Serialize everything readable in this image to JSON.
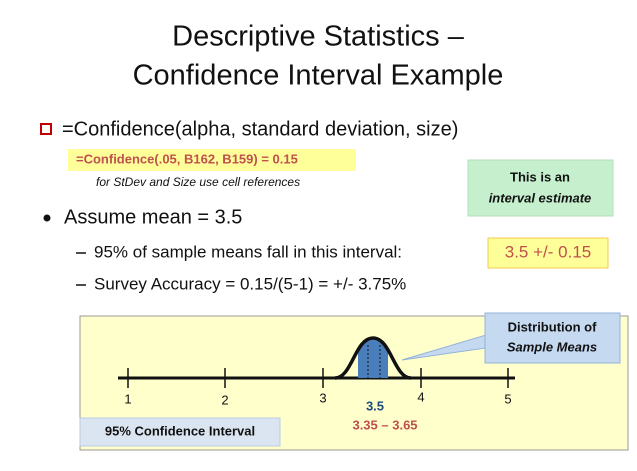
{
  "title": {
    "line1": "Descriptive Statistics –",
    "line2": "Confidence Interval Example"
  },
  "bullet1": {
    "text": "=Confidence(alpha, standard deviation, size)",
    "example": "=Confidence(.05, B162, B159) = 0.15",
    "note": "for StDev and Size use cell references"
  },
  "callout_interval": {
    "line1": "This is an",
    "line2": "interval estimate"
  },
  "bullet2": {
    "text": "Assume mean = 3.5",
    "sub": [
      "95% of sample means fall in this interval:",
      "Survey Accuracy = 0.15/(5-1) = +/- 3.75%"
    ],
    "highlight": "3.5 +/- 0.15"
  },
  "diagram": {
    "ticks": [
      "1",
      "2",
      "3",
      "4",
      "5"
    ],
    "mean_label": "3.5",
    "range_label": "3.35 – 3.65",
    "callout_distribution": {
      "line1": "Distribution of",
      "line2": "Sample Means"
    },
    "interval_label": "95% Confidence Interval"
  }
}
